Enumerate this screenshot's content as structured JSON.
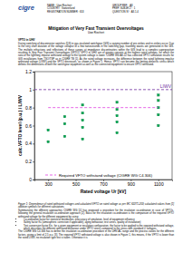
{
  "header": {
    "logo": "cigre",
    "left": [
      "NAME : Uwe Riechert",
      "COUNTRY : Switzerland",
      "REGISTRATION NUMBER : 653"
    ],
    "right": [
      "GROUP REF. : A3",
      "PREF. SUBJECT : 1",
      "QUESTION N° : A3.1.4"
    ]
  },
  "title": "Mitigation of Very Fast Transient Overvoltages",
  "author": "Uwe Riechert",
  "section": "VFTO in UHV",
  "paragraphs_before": [
    "During switching of disconnector switches (DS) in gas-insulated switchgear (GIS) a varying number of pre-strikes and re-strikes occur. Due to the very short duration of the voltage collapse of a few nanoseconds in the switching gap, travelling waves are generated in the GIS. The multiple refractions and reflections of these surges at impedance discontinuities within the GIS lead to a complex superposition resulting in Very Fast Transient Overvoltages (VFTO). VFTO in UHV are of greater concern at the highest rated voltages, for which the ratio of the lightning impulse withstand voltage to the system voltage is lower. CIGRÉ WG A3.22 has collected VFTO simulation results for GIS installations from TSO/TSP as in CIGRÉ TB [1]. As the rated voltage increases, the difference between the rated lightning impulse withstand voltage (LIWV) and the VFTO decreases, as shown in Figure 1. Hence, VFTO can become the limiting dielectric stress which defines the dimensions of both the switchgear equipment as well as the connected equipment to ensure VFTO withstand."
  ],
  "chart_data": {
    "type": "scatter",
    "x_label": "Rated voltage Ur [kV]",
    "y_label": "calc.VFTO level (p.u.) / LIWV",
    "xlim": [
      200,
      1200
    ],
    "xticks": [
      300,
      500,
      700,
      900,
      1100
    ],
    "ylim": [
      0,
      1.2
    ],
    "yticks": [
      0,
      0.2,
      0.4,
      0.6,
      0.8,
      1,
      1.2
    ],
    "legend": "bottom",
    "annotations": [
      {
        "text": "LIWV",
        "y": 1,
        "color": "#7030a0",
        "line_style": "dashed"
      }
    ],
    "series": [
      {
        "type": "scatter",
        "marker": "square",
        "color": "#00a651",
        "x": [
          300,
          300,
          420,
          420,
          420,
          550,
          550,
          550,
          550,
          550,
          800,
          800,
          800,
          800,
          800,
          1100,
          1100,
          1100,
          1100,
          1100
        ],
        "values": [
          0.42,
          0.55,
          0.48,
          0.62,
          0.7,
          0.45,
          0.58,
          0.66,
          0.74,
          0.83,
          0.52,
          0.64,
          0.71,
          0.78,
          0.86,
          0.6,
          0.72,
          0.8,
          0.88,
          0.94
        ]
      },
      {
        "name": "Required VFTO withstand voltage (CIGRE WG C4.306)",
        "type": "line",
        "line_style": "dashed",
        "color": "#e040e0",
        "x": [
          300,
          1100
        ],
        "values": [
          0.8,
          0.8
        ]
      }
    ]
  },
  "caption": "Figure 1: Dependence of rated withstand voltages and calculated VFTO on rated voltage as per IEC 62271-203; calculated values from [1] addition symbols for different substations.",
  "paragraphs_after": [
    "Summarizing the different approaches CIGRE WG D1 has proposed a procedure for the insulation co-ordination in case of VFTOs, following the general insulation co-ordination approach [2]. Basis for the insulation co-ordination is the comparison of the required VFTO withstand voltage for the different equipment by using:"
  ],
  "bullets": [
    "Co-ordination factor for statistical distribution, inaccuracy of simulation, level of equipment influence",
    "Safety factor Ks (atmospheric correction if applicable), aging behaviour, test series, quality of installation)",
    "Test conversion factor Ktc, for a given equipment or insulation configuration, the factor to be applied to the required withstand voltage, which describes the different withstand behaviour under VFTO stress compared to the stress with standard LI voltages."
  ],
  "closing": [
    "The CIGRE WG C4.306 has to define the insulation co-ordination procedure in the UHV-AC range and the process values for the different factors, giving a limit of 2.5 p.u. [3]. The required VFTO withstand voltage is also shown in Figure 1, this means, if the VFTO is lower than the rated LIWV, no insulation type test is taken. Otherwise it is"
  ]
}
